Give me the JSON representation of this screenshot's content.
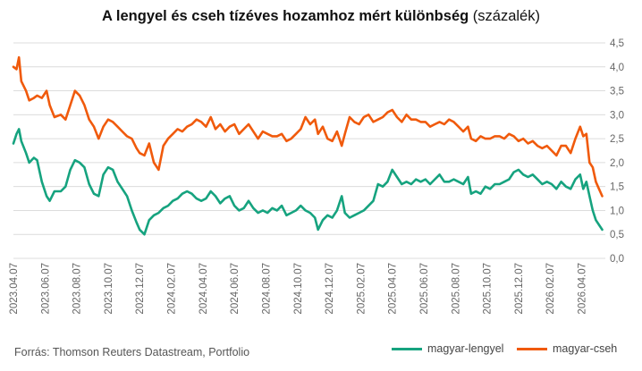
{
  "colors": {
    "hu_pl": "#16a37f",
    "hu_cz": "#f05a0c",
    "grid": "#dcdcdc",
    "text": "#666666"
  },
  "chart_data": {
    "type": "line",
    "title_bold": "A lengyel és cseh tízéves hozamhoz mért különbség",
    "title_unit": "(százalék)",
    "ylim": [
      0,
      4.5
    ],
    "yticks": [
      "0,0",
      "0,5",
      "1,0",
      "1,5",
      "2,0",
      "2,5",
      "3,0",
      "3,5",
      "4,0",
      "4,5"
    ],
    "ytick_values": [
      0,
      0.5,
      1,
      1.5,
      2,
      2.5,
      3,
      3.5,
      4,
      4.5
    ],
    "xticks": [
      "2023.04.07",
      "2023.06.07",
      "2023.08.07",
      "2023.10.07",
      "2023.12.07",
      "2024.02.07",
      "2024.04.07",
      "2024.06.07",
      "2024.08.07",
      "2024.10.07",
      "2024.12.07",
      "2025.02.07",
      "2025.04.07",
      "2025.06.07",
      "2025.08.07",
      "2025.10.07",
      "2025.12.07",
      "2026.02.07",
      "2026.04.07"
    ],
    "x_months": [
      0,
      37.5
    ],
    "series": [
      {
        "name": "magyar-lengyel",
        "key": "hu_pl",
        "points": [
          [
            0,
            2.4
          ],
          [
            0.2,
            2.6
          ],
          [
            0.35,
            2.7
          ],
          [
            0.5,
            2.45
          ],
          [
            0.8,
            2.2
          ],
          [
            1.0,
            2.0
          ],
          [
            1.3,
            2.1
          ],
          [
            1.5,
            2.05
          ],
          [
            1.8,
            1.6
          ],
          [
            2.1,
            1.3
          ],
          [
            2.3,
            1.2
          ],
          [
            2.6,
            1.4
          ],
          [
            3.0,
            1.4
          ],
          [
            3.3,
            1.5
          ],
          [
            3.6,
            1.85
          ],
          [
            3.9,
            2.05
          ],
          [
            4.2,
            2.0
          ],
          [
            4.5,
            1.9
          ],
          [
            4.8,
            1.55
          ],
          [
            5.1,
            1.35
          ],
          [
            5.4,
            1.3
          ],
          [
            5.7,
            1.75
          ],
          [
            6.0,
            1.9
          ],
          [
            6.3,
            1.85
          ],
          [
            6.6,
            1.6
          ],
          [
            6.9,
            1.45
          ],
          [
            7.2,
            1.3
          ],
          [
            7.5,
            1.0
          ],
          [
            7.8,
            0.75
          ],
          [
            8.0,
            0.6
          ],
          [
            8.3,
            0.5
          ],
          [
            8.6,
            0.8
          ],
          [
            8.9,
            0.9
          ],
          [
            9.2,
            0.95
          ],
          [
            9.5,
            1.05
          ],
          [
            9.8,
            1.1
          ],
          [
            10.1,
            1.2
          ],
          [
            10.4,
            1.25
          ],
          [
            10.7,
            1.35
          ],
          [
            11.0,
            1.4
          ],
          [
            11.3,
            1.35
          ],
          [
            11.6,
            1.25
          ],
          [
            11.9,
            1.2
          ],
          [
            12.2,
            1.25
          ],
          [
            12.5,
            1.4
          ],
          [
            12.8,
            1.3
          ],
          [
            13.1,
            1.15
          ],
          [
            13.4,
            1.25
          ],
          [
            13.7,
            1.3
          ],
          [
            14.0,
            1.1
          ],
          [
            14.3,
            1.0
          ],
          [
            14.6,
            1.05
          ],
          [
            14.9,
            1.2
          ],
          [
            15.2,
            1.05
          ],
          [
            15.5,
            0.95
          ],
          [
            15.8,
            1.0
          ],
          [
            16.1,
            0.95
          ],
          [
            16.4,
            1.05
          ],
          [
            16.7,
            1.0
          ],
          [
            17.0,
            1.1
          ],
          [
            17.3,
            0.9
          ],
          [
            17.6,
            0.95
          ],
          [
            17.9,
            1.0
          ],
          [
            18.2,
            1.1
          ],
          [
            18.5,
            1.0
          ],
          [
            18.8,
            0.95
          ],
          [
            19.1,
            0.85
          ],
          [
            19.3,
            0.6
          ],
          [
            19.6,
            0.8
          ],
          [
            19.9,
            0.9
          ],
          [
            20.2,
            0.85
          ],
          [
            20.5,
            1.0
          ],
          [
            20.8,
            1.3
          ],
          [
            21.0,
            0.95
          ],
          [
            21.3,
            0.85
          ],
          [
            21.6,
            0.9
          ],
          [
            21.9,
            0.95
          ],
          [
            22.2,
            1.0
          ],
          [
            22.5,
            1.1
          ],
          [
            22.8,
            1.2
          ],
          [
            23.1,
            1.55
          ],
          [
            23.4,
            1.5
          ],
          [
            23.7,
            1.6
          ],
          [
            24.0,
            1.85
          ],
          [
            24.3,
            1.7
          ],
          [
            24.6,
            1.55
          ],
          [
            24.9,
            1.6
          ],
          [
            25.2,
            1.55
          ],
          [
            25.5,
            1.65
          ],
          [
            25.8,
            1.6
          ],
          [
            26.1,
            1.65
          ],
          [
            26.4,
            1.55
          ],
          [
            26.7,
            1.65
          ],
          [
            27.0,
            1.75
          ],
          [
            27.3,
            1.6
          ],
          [
            27.6,
            1.6
          ],
          [
            27.9,
            1.65
          ],
          [
            28.2,
            1.6
          ],
          [
            28.5,
            1.55
          ],
          [
            28.8,
            1.7
          ],
          [
            29.0,
            1.35
          ],
          [
            29.3,
            1.4
          ],
          [
            29.6,
            1.35
          ],
          [
            29.9,
            1.5
          ],
          [
            30.2,
            1.45
          ],
          [
            30.5,
            1.55
          ],
          [
            30.8,
            1.55
          ],
          [
            31.1,
            1.6
          ],
          [
            31.4,
            1.65
          ],
          [
            31.7,
            1.8
          ],
          [
            32.0,
            1.85
          ],
          [
            32.3,
            1.75
          ],
          [
            32.6,
            1.7
          ],
          [
            32.9,
            1.75
          ],
          [
            33.2,
            1.65
          ],
          [
            33.5,
            1.55
          ],
          [
            33.8,
            1.6
          ],
          [
            34.1,
            1.55
          ],
          [
            34.4,
            1.45
          ],
          [
            34.7,
            1.6
          ],
          [
            35.0,
            1.5
          ],
          [
            35.3,
            1.45
          ],
          [
            35.6,
            1.65
          ],
          [
            35.9,
            1.75
          ],
          [
            36.1,
            1.45
          ],
          [
            36.3,
            1.6
          ],
          [
            36.5,
            1.3
          ],
          [
            36.7,
            1.0
          ],
          [
            36.9,
            0.8
          ],
          [
            37.1,
            0.7
          ],
          [
            37.3,
            0.6
          ]
        ]
      },
      {
        "name": "magyar-cseh",
        "key": "hu_cz",
        "points": [
          [
            0,
            4.0
          ],
          [
            0.2,
            3.95
          ],
          [
            0.35,
            4.2
          ],
          [
            0.5,
            3.7
          ],
          [
            0.8,
            3.5
          ],
          [
            1.0,
            3.3
          ],
          [
            1.3,
            3.35
          ],
          [
            1.5,
            3.4
          ],
          [
            1.8,
            3.35
          ],
          [
            2.1,
            3.5
          ],
          [
            2.3,
            3.2
          ],
          [
            2.6,
            2.95
          ],
          [
            3.0,
            3.0
          ],
          [
            3.3,
            2.9
          ],
          [
            3.6,
            3.2
          ],
          [
            3.9,
            3.5
          ],
          [
            4.2,
            3.4
          ],
          [
            4.5,
            3.2
          ],
          [
            4.8,
            2.9
          ],
          [
            5.1,
            2.75
          ],
          [
            5.4,
            2.5
          ],
          [
            5.7,
            2.75
          ],
          [
            6.0,
            2.9
          ],
          [
            6.3,
            2.85
          ],
          [
            6.6,
            2.75
          ],
          [
            6.9,
            2.65
          ],
          [
            7.2,
            2.55
          ],
          [
            7.5,
            2.5
          ],
          [
            7.8,
            2.3
          ],
          [
            8.0,
            2.2
          ],
          [
            8.3,
            2.15
          ],
          [
            8.6,
            2.4
          ],
          [
            8.9,
            2.0
          ],
          [
            9.2,
            1.85
          ],
          [
            9.5,
            2.35
          ],
          [
            9.8,
            2.5
          ],
          [
            10.1,
            2.6
          ],
          [
            10.4,
            2.7
          ],
          [
            10.7,
            2.65
          ],
          [
            11.0,
            2.75
          ],
          [
            11.3,
            2.8
          ],
          [
            11.6,
            2.9
          ],
          [
            11.9,
            2.85
          ],
          [
            12.2,
            2.75
          ],
          [
            12.5,
            2.95
          ],
          [
            12.8,
            2.7
          ],
          [
            13.1,
            2.8
          ],
          [
            13.4,
            2.65
          ],
          [
            13.7,
            2.75
          ],
          [
            14.0,
            2.8
          ],
          [
            14.3,
            2.6
          ],
          [
            14.6,
            2.7
          ],
          [
            14.9,
            2.8
          ],
          [
            15.2,
            2.65
          ],
          [
            15.5,
            2.5
          ],
          [
            15.8,
            2.65
          ],
          [
            16.1,
            2.6
          ],
          [
            16.4,
            2.55
          ],
          [
            16.7,
            2.55
          ],
          [
            17.0,
            2.6
          ],
          [
            17.3,
            2.45
          ],
          [
            17.6,
            2.5
          ],
          [
            17.9,
            2.6
          ],
          [
            18.2,
            2.7
          ],
          [
            18.5,
            2.95
          ],
          [
            18.8,
            2.8
          ],
          [
            19.1,
            2.9
          ],
          [
            19.3,
            2.6
          ],
          [
            19.6,
            2.75
          ],
          [
            19.9,
            2.5
          ],
          [
            20.2,
            2.45
          ],
          [
            20.5,
            2.65
          ],
          [
            20.8,
            2.35
          ],
          [
            21.0,
            2.6
          ],
          [
            21.3,
            2.95
          ],
          [
            21.6,
            2.85
          ],
          [
            21.9,
            2.8
          ],
          [
            22.2,
            2.95
          ],
          [
            22.5,
            3.0
          ],
          [
            22.8,
            2.85
          ],
          [
            23.1,
            2.9
          ],
          [
            23.4,
            2.95
          ],
          [
            23.7,
            3.05
          ],
          [
            24.0,
            3.1
          ],
          [
            24.3,
            2.95
          ],
          [
            24.6,
            2.85
          ],
          [
            24.9,
            3.0
          ],
          [
            25.2,
            2.9
          ],
          [
            25.5,
            2.9
          ],
          [
            25.8,
            2.85
          ],
          [
            26.1,
            2.85
          ],
          [
            26.4,
            2.75
          ],
          [
            26.7,
            2.8
          ],
          [
            27.0,
            2.85
          ],
          [
            27.3,
            2.8
          ],
          [
            27.6,
            2.9
          ],
          [
            27.9,
            2.85
          ],
          [
            28.2,
            2.75
          ],
          [
            28.5,
            2.65
          ],
          [
            28.8,
            2.75
          ],
          [
            29.0,
            2.5
          ],
          [
            29.3,
            2.45
          ],
          [
            29.6,
            2.55
          ],
          [
            29.9,
            2.5
          ],
          [
            30.2,
            2.5
          ],
          [
            30.5,
            2.55
          ],
          [
            30.8,
            2.55
          ],
          [
            31.1,
            2.5
          ],
          [
            31.4,
            2.6
          ],
          [
            31.7,
            2.55
          ],
          [
            32.0,
            2.45
          ],
          [
            32.3,
            2.5
          ],
          [
            32.6,
            2.4
          ],
          [
            32.9,
            2.45
          ],
          [
            33.2,
            2.35
          ],
          [
            33.5,
            2.3
          ],
          [
            33.8,
            2.35
          ],
          [
            34.1,
            2.25
          ],
          [
            34.4,
            2.15
          ],
          [
            34.7,
            2.35
          ],
          [
            35.0,
            2.35
          ],
          [
            35.3,
            2.2
          ],
          [
            35.6,
            2.5
          ],
          [
            35.9,
            2.75
          ],
          [
            36.1,
            2.55
          ],
          [
            36.3,
            2.6
          ],
          [
            36.5,
            2.0
          ],
          [
            36.7,
            1.9
          ],
          [
            36.9,
            1.6
          ],
          [
            37.1,
            1.45
          ],
          [
            37.3,
            1.3
          ]
        ]
      }
    ]
  },
  "source": "Forrás: Thomson Reuters Datastream, Portfolio",
  "legend": {
    "hu_pl": "magyar-lengyel",
    "hu_cz": "magyar-cseh"
  }
}
